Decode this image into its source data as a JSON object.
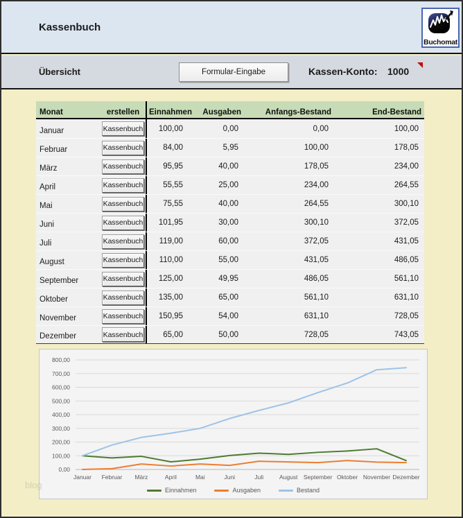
{
  "app": {
    "title": "Kassenbuch",
    "logo_text": "Buchomat"
  },
  "toolbar": {
    "view_label": "Übersicht",
    "form_button_label": "Formular-Eingabe",
    "account_label": "Kassen-Konto:",
    "account_value": "1000"
  },
  "table": {
    "headers": {
      "month": "Monat",
      "create": "erstellen",
      "income": "Einnahmen",
      "expenses": "Ausgaben",
      "opening": "Anfangs-Bestand",
      "closing": "End-Bestand"
    },
    "button_label": "Kassenbuch",
    "rows": [
      {
        "month": "Januar",
        "income": "100,00",
        "expenses": "0,00",
        "opening": "0,00",
        "closing": "100,00"
      },
      {
        "month": "Februar",
        "income": "84,00",
        "expenses": "5,95",
        "opening": "100,00",
        "closing": "178,05"
      },
      {
        "month": "März",
        "income": "95,95",
        "expenses": "40,00",
        "opening": "178,05",
        "closing": "234,00"
      },
      {
        "month": "April",
        "income": "55,55",
        "expenses": "25,00",
        "opening": "234,00",
        "closing": "264,55"
      },
      {
        "month": "Mai",
        "income": "75,55",
        "expenses": "40,00",
        "opening": "264,55",
        "closing": "300,10"
      },
      {
        "month": "Juni",
        "income": "101,95",
        "expenses": "30,00",
        "opening": "300,10",
        "closing": "372,05"
      },
      {
        "month": "Juli",
        "income": "119,00",
        "expenses": "60,00",
        "opening": "372,05",
        "closing": "431,05"
      },
      {
        "month": "August",
        "income": "110,00",
        "expenses": "55,00",
        "opening": "431,05",
        "closing": "486,05"
      },
      {
        "month": "September",
        "income": "125,00",
        "expenses": "49,95",
        "opening": "486,05",
        "closing": "561,10"
      },
      {
        "month": "Oktober",
        "income": "135,00",
        "expenses": "65,00",
        "opening": "561,10",
        "closing": "631,10"
      },
      {
        "month": "November",
        "income": "150,95",
        "expenses": "54,00",
        "opening": "631,10",
        "closing": "728,05"
      },
      {
        "month": "Dezember",
        "income": "65,00",
        "expenses": "50,00",
        "opening": "728,05",
        "closing": "743,05"
      }
    ]
  },
  "chart_data": {
    "type": "line",
    "categories": [
      "Januar",
      "Februar",
      "März",
      "April",
      "Mai",
      "Juni",
      "Juli",
      "August",
      "September",
      "Oktober",
      "November",
      "Dezember"
    ],
    "series": [
      {
        "name": "Einnahmen",
        "color": "#4e7b30",
        "values": [
          100,
          84,
          95.95,
          55.55,
          75.55,
          101.95,
          119,
          110,
          125,
          135,
          150.95,
          65
        ]
      },
      {
        "name": "Ausgaben",
        "color": "#ed7d31",
        "values": [
          0,
          5.95,
          40,
          25,
          40,
          30,
          60,
          55,
          49.95,
          65,
          54,
          50
        ]
      },
      {
        "name": "Bestand",
        "color": "#9dc3e6",
        "values": [
          100,
          178.05,
          234,
          264.55,
          300.1,
          372.05,
          431.05,
          486.05,
          561.1,
          631.1,
          728.05,
          743.05
        ]
      }
    ],
    "ylim": [
      0,
      800
    ],
    "y_tick_step": 100,
    "y_tick_labels": [
      "0,00",
      "100,00",
      "200,00",
      "300,00",
      "400,00",
      "500,00",
      "600,00",
      "700,00",
      "800,00"
    ],
    "grid": true,
    "legend_position": "bottom"
  },
  "watermark": "blog",
  "colors": {
    "header_bg": "#dce6f1",
    "toolbar_bg": "#d4dae0",
    "table_header_bg": "#c7dcb6",
    "page_bg": "#f3eec6",
    "row_bg": "#f0f0f0",
    "comment_marker_red": "#c80000",
    "logo_border_blue": "#4a66b0"
  }
}
